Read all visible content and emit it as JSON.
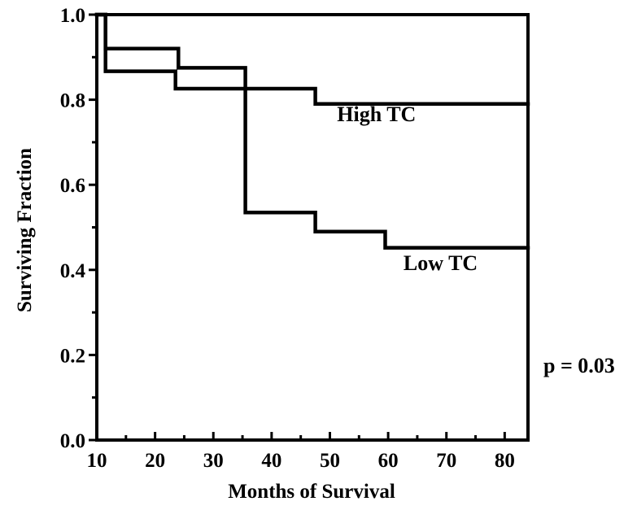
{
  "chart_data": {
    "type": "line",
    "step": true,
    "title": "",
    "xlabel": "Months of Survival",
    "ylabel": "Surviving Fraction",
    "xlim": [
      10,
      84
    ],
    "ylim": [
      0.0,
      1.0
    ],
    "x_ticks": [
      10,
      20,
      30,
      40,
      50,
      60,
      70,
      80
    ],
    "x_tick_labels": [
      "10",
      "20",
      "30",
      "40",
      "50",
      "60",
      "70",
      "80"
    ],
    "y_ticks": [
      0.0,
      0.2,
      0.4,
      0.6,
      0.8,
      1.0
    ],
    "y_tick_labels": [
      "0.0",
      "0.2",
      "0.4",
      "0.6",
      "0.8",
      "1.0"
    ],
    "grid": false,
    "series": [
      {
        "name": "High TC",
        "x": [
          10,
          11.5,
          11.5,
          23.5,
          23.5,
          47.5,
          47.5,
          84
        ],
        "y": [
          1.0,
          1.0,
          0.867,
          0.867,
          0.826,
          0.826,
          0.79,
          0.79
        ]
      },
      {
        "name": "Low TC",
        "x": [
          10,
          11.5,
          11.5,
          24,
          24,
          35.5,
          35.5,
          47.5,
          47.5,
          59.5,
          59.5,
          84
        ],
        "y": [
          1.0,
          1.0,
          0.92,
          0.92,
          0.875,
          0.875,
          0.535,
          0.535,
          0.49,
          0.49,
          0.452,
          0.452
        ]
      }
    ],
    "annotations": [
      {
        "text": "High TC",
        "x": 58,
        "y": 0.75
      },
      {
        "text": "Low TC",
        "x": 69,
        "y": 0.4
      }
    ],
    "p_value_text": "p = 0.03"
  }
}
